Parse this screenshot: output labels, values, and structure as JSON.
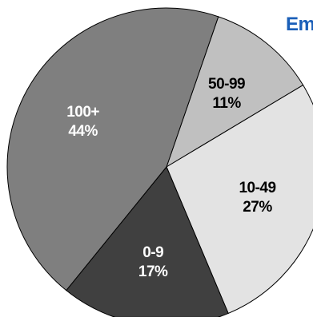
{
  "chart_data": {
    "type": "pie",
    "title": "Em",
    "slices": [
      {
        "label": "50-99",
        "value": 11,
        "value_label": "11%",
        "color": "#c0c0c0",
        "text_color": "#000000"
      },
      {
        "label": "10-49",
        "value": 27,
        "value_label": "27%",
        "color": "#e3e3e3",
        "text_color": "#000000"
      },
      {
        "label": "0-9",
        "value": 17,
        "value_label": "17%",
        "color": "#404040",
        "text_color": "#ffffff"
      },
      {
        "label": "100+",
        "value": 44,
        "value_label": "44%",
        "color": "#7f7f7f",
        "text_color": "#ffffff"
      }
    ],
    "start_angle_deg": 19,
    "direction": "clockwise",
    "stroke_color": "#000000"
  }
}
